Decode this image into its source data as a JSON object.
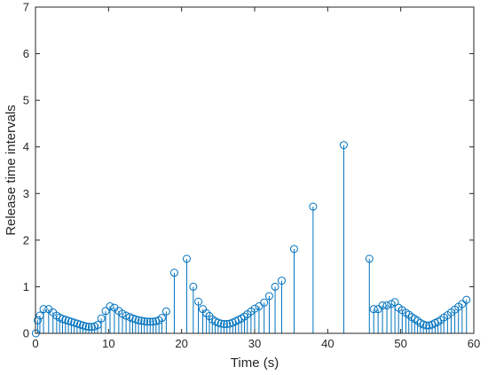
{
  "chart_data": {
    "type": "stem",
    "xlabel": "Time (s)",
    "ylabel": "Release time intervals",
    "xlim": [
      0,
      60
    ],
    "ylim": [
      0,
      7
    ],
    "xticks": [
      0,
      10,
      20,
      30,
      40,
      50,
      60
    ],
    "yticks": [
      0,
      1,
      2,
      3,
      4,
      5,
      6,
      7
    ],
    "grid": false,
    "colors": {
      "stem": "#0072bd",
      "axis": "#262626",
      "background": "#ffffff"
    },
    "series": [
      {
        "points": [
          [
            0.05,
            0.0
          ],
          [
            0.3,
            0.28
          ],
          [
            0.6,
            0.38
          ],
          [
            1.1,
            0.52
          ],
          [
            1.8,
            0.52
          ],
          [
            2.4,
            0.45
          ],
          [
            2.9,
            0.38
          ],
          [
            3.3,
            0.34
          ],
          [
            3.7,
            0.31
          ],
          [
            4.1,
            0.29
          ],
          [
            4.5,
            0.27
          ],
          [
            4.9,
            0.25
          ],
          [
            5.3,
            0.23
          ],
          [
            5.7,
            0.21
          ],
          [
            6.1,
            0.19
          ],
          [
            6.5,
            0.17
          ],
          [
            6.9,
            0.15
          ],
          [
            7.3,
            0.14
          ],
          [
            7.7,
            0.14
          ],
          [
            8.1,
            0.15
          ],
          [
            8.5,
            0.18
          ],
          [
            9.0,
            0.32
          ],
          [
            9.6,
            0.48
          ],
          [
            10.2,
            0.58
          ],
          [
            10.8,
            0.55
          ],
          [
            11.4,
            0.48
          ],
          [
            11.9,
            0.42
          ],
          [
            12.4,
            0.38
          ],
          [
            12.9,
            0.35
          ],
          [
            13.3,
            0.32
          ],
          [
            13.7,
            0.3
          ],
          [
            14.1,
            0.28
          ],
          [
            14.5,
            0.27
          ],
          [
            14.9,
            0.26
          ],
          [
            15.3,
            0.25
          ],
          [
            15.7,
            0.25
          ],
          [
            16.1,
            0.25
          ],
          [
            16.5,
            0.26
          ],
          [
            16.9,
            0.28
          ],
          [
            17.3,
            0.33
          ],
          [
            17.9,
            0.47
          ],
          [
            19.0,
            1.3
          ],
          [
            20.7,
            1.6
          ],
          [
            21.6,
            1.0
          ],
          [
            22.3,
            0.68
          ],
          [
            22.9,
            0.52
          ],
          [
            23.4,
            0.43
          ],
          [
            23.8,
            0.37
          ],
          [
            24.2,
            0.3
          ],
          [
            24.6,
            0.26
          ],
          [
            25.0,
            0.23
          ],
          [
            25.4,
            0.21
          ],
          [
            25.8,
            0.2
          ],
          [
            26.2,
            0.2
          ],
          [
            26.6,
            0.21
          ],
          [
            27.0,
            0.23
          ],
          [
            27.4,
            0.26
          ],
          [
            27.8,
            0.29
          ],
          [
            28.2,
            0.32
          ],
          [
            28.6,
            0.36
          ],
          [
            29.0,
            0.41
          ],
          [
            29.5,
            0.47
          ],
          [
            30.0,
            0.53
          ],
          [
            30.6,
            0.58
          ],
          [
            31.3,
            0.66
          ],
          [
            32.0,
            0.8
          ],
          [
            32.8,
            1.0
          ],
          [
            33.7,
            1.13
          ],
          [
            35.4,
            1.81
          ],
          [
            38.0,
            2.72
          ],
          [
            42.2,
            4.04
          ],
          [
            45.7,
            1.6
          ],
          [
            46.3,
            0.52
          ],
          [
            46.9,
            0.52
          ],
          [
            47.5,
            0.6
          ],
          [
            48.1,
            0.6
          ],
          [
            48.7,
            0.63
          ],
          [
            49.2,
            0.67
          ],
          [
            49.7,
            0.55
          ],
          [
            50.2,
            0.5
          ],
          [
            50.7,
            0.44
          ],
          [
            51.1,
            0.4
          ],
          [
            51.5,
            0.35
          ],
          [
            51.9,
            0.31
          ],
          [
            52.3,
            0.27
          ],
          [
            52.7,
            0.22
          ],
          [
            53.1,
            0.19
          ],
          [
            53.5,
            0.17
          ],
          [
            53.9,
            0.17
          ],
          [
            54.3,
            0.19
          ],
          [
            54.7,
            0.22
          ],
          [
            55.1,
            0.25
          ],
          [
            55.5,
            0.29
          ],
          [
            55.9,
            0.34
          ],
          [
            56.4,
            0.39
          ],
          [
            56.9,
            0.45
          ],
          [
            57.4,
            0.51
          ],
          [
            57.9,
            0.57
          ],
          [
            58.4,
            0.63
          ],
          [
            59.0,
            0.72
          ]
        ]
      }
    ]
  }
}
